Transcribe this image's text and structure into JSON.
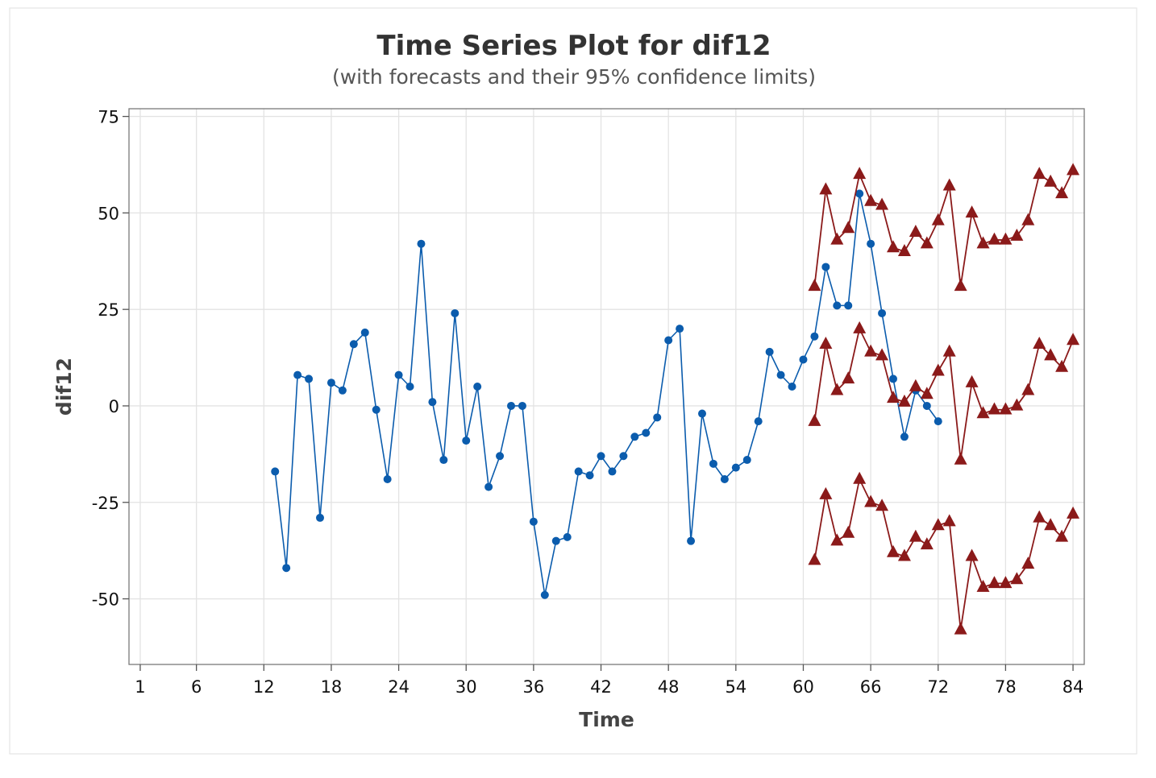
{
  "chart_data": {
    "type": "line",
    "title": "Time Series Plot for dif12",
    "subtitle": "(with forecasts and their 95% confidence limits)",
    "xlabel": "Time",
    "ylabel": "dif12",
    "xlim": [
      0,
      85
    ],
    "ylim": [
      -67,
      77
    ],
    "x_ticks": [
      1,
      6,
      12,
      18,
      24,
      30,
      36,
      42,
      48,
      54,
      60,
      66,
      72,
      78,
      84
    ],
    "y_ticks": [
      75,
      50,
      25,
      0,
      -25,
      -50
    ],
    "y_tick_labels": [
      "75",
      "50",
      "25",
      "0",
      "-25",
      "-50"
    ],
    "grid": true,
    "colors": {
      "observed": "#0b5cad",
      "forecast": "#8b1a1a",
      "grid": "#e3e3e3",
      "border": "#7a7a7a"
    },
    "series": [
      {
        "role": "observed",
        "marker": "circle",
        "color": "#0b5cad",
        "x": [
          13,
          14,
          15,
          16,
          17,
          18,
          19,
          20,
          21,
          22,
          23,
          24,
          25,
          26,
          27,
          28,
          29,
          30,
          31,
          32,
          33,
          34,
          35,
          36,
          37,
          38,
          39,
          40,
          41,
          42,
          43,
          44,
          45,
          46,
          47,
          48,
          49,
          50,
          51,
          52,
          53,
          54,
          55,
          56,
          57,
          58,
          59,
          60,
          61,
          62,
          63,
          64,
          65,
          66,
          67,
          68,
          69,
          70,
          71,
          72
        ],
        "values": [
          -17,
          -42,
          8,
          7,
          -29,
          6,
          4,
          16,
          19,
          -1,
          -19,
          8,
          5,
          42,
          1,
          -14,
          24,
          -9,
          5,
          -21,
          -13,
          0,
          0,
          -30,
          -49,
          -35,
          -34,
          -17,
          -18,
          -13,
          -17,
          -13,
          -8,
          -7,
          -3,
          17,
          20,
          -35,
          -2,
          -15,
          -19,
          -16,
          -14,
          -4,
          14,
          8,
          5,
          12,
          18,
          36,
          26,
          26,
          55,
          42,
          24,
          7,
          -8,
          4,
          0,
          -4
        ]
      },
      {
        "role": "upper-limit",
        "marker": "triangle",
        "color": "#8b1a1a",
        "x": [
          61,
          62,
          63,
          64,
          65,
          66,
          67,
          68,
          69,
          70,
          71,
          72,
          73,
          74,
          75,
          76,
          77,
          78,
          79,
          80,
          81,
          82,
          83,
          84
        ],
        "values": [
          31,
          56,
          43,
          46,
          60,
          53,
          52,
          41,
          40,
          45,
          42,
          48,
          57,
          31,
          50,
          42,
          43,
          43,
          44,
          48,
          60,
          58,
          55,
          61
        ]
      },
      {
        "role": "forecast",
        "marker": "triangle",
        "color": "#8b1a1a",
        "x": [
          61,
          62,
          63,
          64,
          65,
          66,
          67,
          68,
          69,
          70,
          71,
          72,
          73,
          74,
          75,
          76,
          77,
          78,
          79,
          80,
          81,
          82,
          83,
          84
        ],
        "values": [
          -4,
          16,
          4,
          7,
          20,
          14,
          13,
          2,
          1,
          5,
          3,
          9,
          14,
          -14,
          6,
          -2,
          -1,
          -1,
          0,
          4,
          16,
          13,
          10,
          17
        ]
      },
      {
        "role": "lower-limit",
        "marker": "triangle",
        "color": "#8b1a1a",
        "x": [
          61,
          62,
          63,
          64,
          65,
          66,
          67,
          68,
          69,
          70,
          71,
          72,
          73,
          74,
          75,
          76,
          77,
          78,
          79,
          80,
          81,
          82,
          83,
          84
        ],
        "values": [
          -40,
          -23,
          -35,
          -33,
          -19,
          -25,
          -26,
          -38,
          -39,
          -34,
          -36,
          -31,
          -30,
          -58,
          -39,
          -47,
          -46,
          -46,
          -45,
          -41,
          -29,
          -31,
          -34,
          -28
        ]
      }
    ]
  }
}
